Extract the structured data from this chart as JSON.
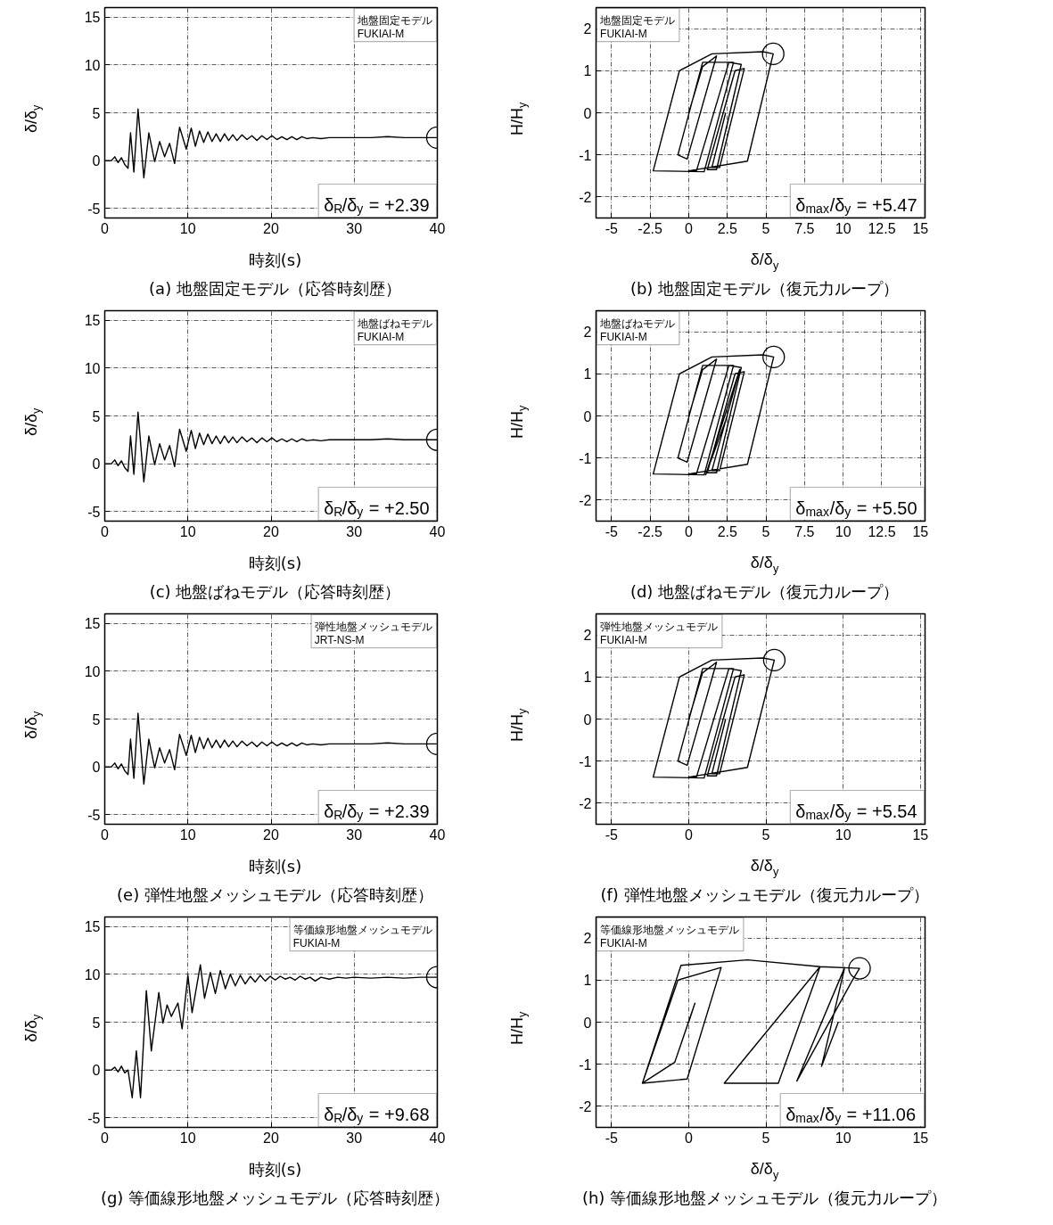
{
  "chart_data": [
    {
      "type": "line",
      "title": "(a) 地盤固定モデル（応答時刻歴）",
      "xlabel": "時刻(s)",
      "ylabel": "δ/δ$_{y}$",
      "annotations": [
        "地盤固定モデル\nFUKIAI-M",
        "δ$_{R}$/δ$_{y}$ = +2.39"
      ],
      "xlim": [
        0,
        40
      ],
      "ylim": [
        -6,
        16
      ],
      "xticks": [
        0,
        10,
        20,
        30,
        40
      ],
      "yticks": [
        -5,
        0,
        5,
        10,
        15
      ],
      "grid": true,
      "x": [
        0,
        0.8,
        1.2,
        1.6,
        2.0,
        2.4,
        2.8,
        3.1,
        3.5,
        4.0,
        4.7,
        5.3,
        6.0,
        6.6,
        7.2,
        7.8,
        8.4,
        9.0,
        9.8,
        10.4,
        10.9,
        11.4,
        11.9,
        12.4,
        12.9,
        13.4,
        13.9,
        14.4,
        14.9,
        15.4,
        15.9,
        16.5,
        17.1,
        17.7,
        18.3,
        18.9,
        19.5,
        20.1,
        20.7,
        21.3,
        21.9,
        22.5,
        23.1,
        23.7,
        24.3,
        25,
        26,
        27,
        28,
        29,
        30,
        32,
        34,
        36,
        38,
        40
      ],
      "series": [
        {
          "color": "#000000",
          "values": [
            0,
            0,
            0.4,
            -0.2,
            0.3,
            -0.4,
            -0.8,
            2.9,
            -1.2,
            5.4,
            -1.8,
            2.9,
            -0.1,
            2.0,
            0.4,
            1.8,
            -0.3,
            3.5,
            1.2,
            3.4,
            1.5,
            3.1,
            1.9,
            3.0,
            2.0,
            2.8,
            2.0,
            2.8,
            2.1,
            2.7,
            2.1,
            2.7,
            2.2,
            2.6,
            2.1,
            2.6,
            2.2,
            2.6,
            2.2,
            2.5,
            2.2,
            2.5,
            2.2,
            2.5,
            2.3,
            2.4,
            2.3,
            2.4,
            2.4,
            2.4,
            2.4,
            2.4,
            2.5,
            2.4,
            2.4,
            2.4
          ]
        },
        {
          "type": "scatter",
          "marker": "circle",
          "color": "#000000",
          "x": [
            40
          ],
          "values": [
            2.4
          ]
        }
      ]
    },
    {
      "type": "line",
      "title": "(b) 地盤固定モデル（復元力ループ）",
      "xlabel": "δ/δ$_{y}$",
      "ylabel": "H/H$_{y}$",
      "annotations": [
        "地盤固定モデル\nFUKIAI-M",
        "δ$_{max}$/δ$_{y}$ = +5.47"
      ],
      "xlim": [
        -6,
        15.3
      ],
      "ylim": [
        -2.5,
        2.5
      ],
      "xticks": [
        -5,
        -2.5,
        0,
        2.5,
        5,
        7.5,
        10,
        12.5,
        15
      ],
      "yticks": [
        -2,
        -1,
        0,
        1,
        2
      ],
      "grid": true,
      "series": [
        {
          "color": "#000000",
          "x": [
            0,
            0.9,
            1.8,
            -0.1,
            -0.7,
            0.9,
            2.9,
            1.0,
            -2.3,
            -0.6,
            1.5,
            4.8,
            5.47,
            3.8,
            0.0,
            0.5,
            2.6,
            3.4,
            1.8,
            1.2,
            3.0,
            3.6,
            2.0,
            1.5,
            2.39
          ],
          "values": [
            0,
            1.1,
            1.35,
            -1.1,
            -1.0,
            1.2,
            1.2,
            -1.4,
            -1.38,
            1.0,
            1.4,
            1.45,
            1.4,
            -1.15,
            -1.38,
            -1.38,
            1.2,
            1.15,
            -1.35,
            -1.35,
            1.0,
            1.05,
            -1.3,
            -1.3,
            0.0
          ]
        },
        {
          "type": "scatter",
          "marker": "circle",
          "color": "#000000",
          "x": [
            5.47
          ],
          "values": [
            1.4
          ]
        }
      ]
    },
    {
      "type": "line",
      "title": "(c) 地盤ばねモデル（応答時刻歴）",
      "xlabel": "時刻(s)",
      "ylabel": "δ/δ$_{y}$",
      "annotations": [
        "地盤ばねモデル\nFUKIAI-M",
        "δ$_{R}$/δ$_{y}$ = +2.50"
      ],
      "xlim": [
        0,
        40
      ],
      "ylim": [
        -6,
        16
      ],
      "xticks": [
        0,
        10,
        20,
        30,
        40
      ],
      "yticks": [
        -5,
        0,
        5,
        10,
        15
      ],
      "grid": true,
      "x": [
        0,
        0.8,
        1.2,
        1.6,
        2.0,
        2.4,
        2.8,
        3.1,
        3.5,
        4.0,
        4.7,
        5.3,
        6.0,
        6.6,
        7.2,
        7.8,
        8.4,
        9.0,
        9.8,
        10.4,
        10.9,
        11.4,
        11.9,
        12.4,
        12.9,
        13.4,
        13.9,
        14.4,
        14.9,
        15.4,
        15.9,
        16.5,
        17.1,
        17.7,
        18.3,
        18.9,
        19.5,
        20.1,
        20.7,
        21.3,
        21.9,
        22.5,
        23.1,
        23.7,
        24.3,
        25,
        26,
        27,
        28,
        29,
        30,
        32,
        34,
        36,
        38,
        40
      ],
      "series": [
        {
          "color": "#000000",
          "values": [
            0,
            0,
            0.4,
            -0.2,
            0.3,
            -0.4,
            -0.8,
            2.9,
            -1.1,
            5.4,
            -1.9,
            2.9,
            -0.1,
            2.1,
            0.4,
            1.9,
            -0.3,
            3.6,
            1.3,
            3.5,
            1.6,
            3.2,
            2.0,
            3.1,
            2.1,
            2.9,
            2.1,
            2.9,
            2.2,
            2.8,
            2.2,
            2.8,
            2.3,
            2.7,
            2.2,
            2.7,
            2.3,
            2.7,
            2.3,
            2.6,
            2.3,
            2.6,
            2.3,
            2.6,
            2.4,
            2.5,
            2.4,
            2.5,
            2.5,
            2.5,
            2.5,
            2.5,
            2.6,
            2.5,
            2.5,
            2.5
          ]
        },
        {
          "type": "scatter",
          "marker": "circle",
          "color": "#000000",
          "x": [
            40
          ],
          "values": [
            2.5
          ]
        }
      ]
    },
    {
      "type": "line",
      "title": "(d) 地盤ばねモデル（復元力ループ）",
      "xlabel": "δ/δ$_{y}$",
      "ylabel": "H/H$_{y}$",
      "annotations": [
        "地盤ばねモデル\nFUKIAI-M",
        "δ$_{max}$/δ$_{y}$ = +5.50"
      ],
      "xlim": [
        -6,
        15.3
      ],
      "ylim": [
        -2.5,
        2.5
      ],
      "xticks": [
        -5,
        -2.5,
        0,
        2.5,
        5,
        7.5,
        10,
        12.5,
        15
      ],
      "yticks": [
        -2,
        -1,
        0,
        1,
        2
      ],
      "grid": true,
      "series": [
        {
          "color": "#000000",
          "x": [
            0,
            0.9,
            1.8,
            -0.1,
            -0.7,
            0.9,
            2.9,
            1.0,
            -2.3,
            -0.6,
            1.5,
            4.8,
            5.5,
            3.8,
            0.0,
            0.5,
            2.6,
            3.4,
            1.8,
            1.2,
            3.0,
            3.6,
            2.0,
            1.5,
            3.3,
            1.1,
            2.5
          ],
          "values": [
            0,
            1.1,
            1.35,
            -1.1,
            -1.0,
            1.2,
            1.2,
            -1.4,
            -1.38,
            1.0,
            1.4,
            1.45,
            1.4,
            -1.15,
            -1.38,
            -1.38,
            1.2,
            1.15,
            -1.35,
            -1.35,
            1.0,
            1.05,
            -1.3,
            -1.3,
            1.1,
            -1.4,
            0.0
          ]
        },
        {
          "type": "scatter",
          "marker": "circle",
          "color": "#000000",
          "x": [
            5.5
          ],
          "values": [
            1.4
          ]
        }
      ]
    },
    {
      "type": "line",
      "title": "(e) 弾性地盤メッシュモデル（応答時刻歴）",
      "xlabel": "時刻(s)",
      "ylabel": "δ/δ$_{y}$",
      "annotations": [
        "弾性地盤メッシュモデル\nJRT-NS-M",
        "δ$_{R}$/δ$_{y}$ = +2.39"
      ],
      "xlim": [
        0,
        40
      ],
      "ylim": [
        -6,
        16
      ],
      "xticks": [
        0,
        10,
        20,
        30,
        40
      ],
      "yticks": [
        -5,
        0,
        5,
        10,
        15
      ],
      "grid": true,
      "x": [
        0,
        0.8,
        1.2,
        1.6,
        2.0,
        2.4,
        2.8,
        3.1,
        3.5,
        4.0,
        4.7,
        5.3,
        6.0,
        6.6,
        7.2,
        7.8,
        8.4,
        9.0,
        9.8,
        10.4,
        10.9,
        11.4,
        11.9,
        12.4,
        12.9,
        13.4,
        13.9,
        14.4,
        14.9,
        15.4,
        15.9,
        16.5,
        17.1,
        17.7,
        18.3,
        18.9,
        19.5,
        20.1,
        20.7,
        21.3,
        21.9,
        22.5,
        23.1,
        23.7,
        24.3,
        25,
        26,
        27,
        28,
        29,
        30,
        32,
        34,
        36,
        38,
        40
      ],
      "series": [
        {
          "color": "#000000",
          "values": [
            0,
            0,
            0.4,
            -0.2,
            0.3,
            -0.4,
            -0.8,
            2.9,
            -1.2,
            5.6,
            -1.8,
            2.9,
            -0.1,
            2.0,
            0.4,
            1.8,
            -0.3,
            3.4,
            1.2,
            3.3,
            1.5,
            3.1,
            1.9,
            3.0,
            2.0,
            2.8,
            2.0,
            2.8,
            2.1,
            2.7,
            2.1,
            2.7,
            2.2,
            2.6,
            2.1,
            2.6,
            2.2,
            2.6,
            2.2,
            2.5,
            2.2,
            2.5,
            2.2,
            2.5,
            2.3,
            2.4,
            2.3,
            2.4,
            2.4,
            2.4,
            2.4,
            2.4,
            2.5,
            2.4,
            2.4,
            2.4
          ]
        },
        {
          "type": "scatter",
          "marker": "circle",
          "color": "#000000",
          "x": [
            40
          ],
          "values": [
            2.4
          ]
        }
      ]
    },
    {
      "type": "line",
      "title": "(f) 弾性地盤メッシュモデル（復元力ループ）",
      "xlabel": "δ/δ$_{y}$",
      "ylabel": "H/H$_{y}$",
      "annotations": [
        "弾性地盤メッシュモデル\nFUKIAI-M",
        "δ$_{max}$/δ$_{y}$ = +5.54"
      ],
      "xlim": [
        -6,
        15.3
      ],
      "ylim": [
        -2.5,
        2.5
      ],
      "xticks": [
        -5,
        0,
        5,
        10,
        15
      ],
      "yticks": [
        -2,
        -1,
        0,
        1,
        2
      ],
      "grid": true,
      "series": [
        {
          "color": "#000000",
          "x": [
            0,
            0.9,
            1.8,
            -0.1,
            -0.7,
            0.9,
            2.9,
            1.0,
            -2.3,
            -0.6,
            1.5,
            4.8,
            5.54,
            3.8,
            0.0,
            0.5,
            2.6,
            3.4,
            1.8,
            1.2,
            3.0,
            3.6,
            2.0,
            1.5,
            2.39
          ],
          "values": [
            0,
            1.1,
            1.35,
            -1.1,
            -1.0,
            1.2,
            1.2,
            -1.4,
            -1.38,
            1.0,
            1.4,
            1.45,
            1.4,
            -1.15,
            -1.38,
            -1.38,
            1.2,
            1.15,
            -1.35,
            -1.35,
            1.0,
            1.05,
            -1.3,
            -1.3,
            0.0
          ]
        },
        {
          "type": "scatter",
          "marker": "circle",
          "color": "#000000",
          "x": [
            5.54
          ],
          "values": [
            1.4
          ]
        }
      ]
    },
    {
      "type": "line",
      "title": "(g) 等価線形地盤メッシュモデル（応答時刻歴）",
      "xlabel": "時刻(s)",
      "ylabel": "δ/δ$_{y}$",
      "annotations": [
        "等価線形地盤メッシュモデル\nFUKIAI-M",
        "δ$_{R}$/δ$_{y}$ = +9.68"
      ],
      "xlim": [
        0,
        40
      ],
      "ylim": [
        -6,
        16
      ],
      "xticks": [
        0,
        10,
        20,
        30,
        40
      ],
      "yticks": [
        -5,
        0,
        5,
        10,
        15
      ],
      "grid": true,
      "x": [
        0,
        0.8,
        1.2,
        1.6,
        2.0,
        2.4,
        2.8,
        3.3,
        3.8,
        4.3,
        5.0,
        5.6,
        6.5,
        7.0,
        7.5,
        8.0,
        8.8,
        9.3,
        10.0,
        10.5,
        11.5,
        12.0,
        12.7,
        13.3,
        13.9,
        14.5,
        15.1,
        15.7,
        16.3,
        16.9,
        17.5,
        18.1,
        18.7,
        19.3,
        19.9,
        20.5,
        21.1,
        21.7,
        22.3,
        22.9,
        23.5,
        24.1,
        24.7,
        25.3,
        26,
        27,
        28,
        29,
        30,
        32,
        34,
        36,
        38,
        40
      ],
      "series": [
        {
          "color": "#000000",
          "values": [
            0,
            0,
            0.3,
            -0.2,
            0.4,
            -0.3,
            0,
            -2.9,
            2.0,
            -2.9,
            8.3,
            2.0,
            8.1,
            4.9,
            6.8,
            5.6,
            7.0,
            4.3,
            9.9,
            6.0,
            11.0,
            7.5,
            10.2,
            8.0,
            10.4,
            8.5,
            10.0,
            8.8,
            9.9,
            9.0,
            9.8,
            9.2,
            9.9,
            9.3,
            9.8,
            9.4,
            9.8,
            9.5,
            9.7,
            9.4,
            9.8,
            9.5,
            9.7,
            9.3,
            9.7,
            9.5,
            9.7,
            9.6,
            9.7,
            9.6,
            9.7,
            9.6,
            9.7,
            9.7
          ]
        },
        {
          "type": "scatter",
          "marker": "circle",
          "color": "#000000",
          "x": [
            40
          ],
          "values": [
            9.7
          ]
        }
      ]
    },
    {
      "type": "line",
      "title": "(h) 等価線形地盤メッシュモデル（復元力ループ）",
      "xlabel": "δ/δ$_{y}$",
      "ylabel": "H/H$_{y}$",
      "annotations": [
        "等価線形地盤メッシュモデル\nFUKIAI-M",
        "δ$_{max}$/δ$_{y}$ = +11.06"
      ],
      "xlim": [
        -6,
        15.3
      ],
      "ylim": [
        -2.5,
        2.5
      ],
      "xticks": [
        -5,
        0,
        5,
        10,
        15
      ],
      "yticks": [
        -2,
        -1,
        0,
        1,
        2
      ],
      "grid": true,
      "series": [
        {
          "color": "#000000",
          "x": [
            0,
            0.4,
            -0.9,
            -3.0,
            -0.7,
            2.1,
            -0.1,
            -3.0,
            -0.5,
            3.8,
            8.5,
            2.3,
            5.8,
            8.5,
            11.06,
            10.6,
            7.0,
            10.1,
            8.6,
            9.68
          ],
          "values": [
            0,
            0.45,
            -0.95,
            -1.45,
            1.0,
            1.3,
            -1.35,
            -1.45,
            1.35,
            1.48,
            1.32,
            -1.45,
            -1.45,
            1.32,
            1.28,
            1.0,
            -1.4,
            1.3,
            -1.05,
            0.0
          ]
        },
        {
          "type": "scatter",
          "marker": "circle",
          "color": "#000000",
          "x": [
            11.06
          ],
          "values": [
            1.28
          ]
        }
      ]
    }
  ]
}
